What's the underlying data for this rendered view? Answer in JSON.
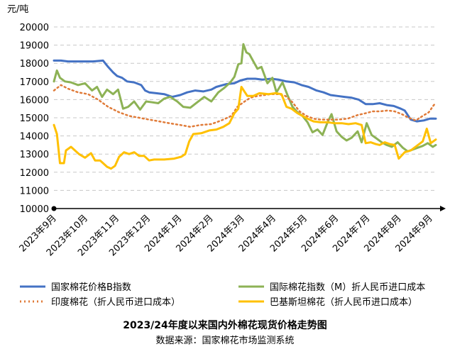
{
  "chart_data": {
    "type": "line",
    "title": "2023/24年度以来国内外棉花现货价格走势图",
    "source": "数据来源：国家棉花市场监测系统",
    "ylabel": "元/吨",
    "ylim": [
      10000,
      20000
    ],
    "ystep": 1000,
    "grid": "horizontal dashed",
    "x_range": [
      "2023-09-01",
      "2024-09-16"
    ],
    "categories": [
      "2023年9月",
      "2023年10月",
      "2023年11月",
      "2023年12月",
      "2024年1月",
      "2024年2月",
      "2024年3月",
      "2024年4月",
      "2024年5月",
      "2024年6月",
      "2024年7月",
      "2024年8月",
      "2024年9月"
    ],
    "legend_position": "bottom",
    "series": [
      {
        "name": "国家棉花价格B指数",
        "color": "#4472c4",
        "style": "solid",
        "points": [
          [
            "2023-09-01",
            18150
          ],
          [
            "2023-09-08",
            18150
          ],
          [
            "2023-09-15",
            18100
          ],
          [
            "2023-09-25",
            18100
          ],
          [
            "2023-10-10",
            18100
          ],
          [
            "2023-10-20",
            18150
          ],
          [
            "2023-10-25",
            17800
          ],
          [
            "2023-10-30",
            17500
          ],
          [
            "2023-11-03",
            17300
          ],
          [
            "2023-11-08",
            17200
          ],
          [
            "2023-11-13",
            17000
          ],
          [
            "2023-11-20",
            16950
          ],
          [
            "2023-11-27",
            16800
          ],
          [
            "2023-12-01",
            16500
          ],
          [
            "2023-12-05",
            16400
          ],
          [
            "2023-12-12",
            16350
          ],
          [
            "2023-12-20",
            16300
          ],
          [
            "2023-12-28",
            16150
          ],
          [
            "2024-01-05",
            16250
          ],
          [
            "2024-01-12",
            16400
          ],
          [
            "2024-01-20",
            16500
          ],
          [
            "2024-01-28",
            16450
          ],
          [
            "2024-02-05",
            16550
          ],
          [
            "2024-02-10",
            16700
          ],
          [
            "2024-02-20",
            16850
          ],
          [
            "2024-02-28",
            16900
          ],
          [
            "2024-03-05",
            17050
          ],
          [
            "2024-03-12",
            17150
          ],
          [
            "2024-03-20",
            17150
          ],
          [
            "2024-03-27",
            17100
          ],
          [
            "2024-04-05",
            17150
          ],
          [
            "2024-04-12",
            17100
          ],
          [
            "2024-04-20",
            17000
          ],
          [
            "2024-04-28",
            16950
          ],
          [
            "2024-05-05",
            16800
          ],
          [
            "2024-05-12",
            16700
          ],
          [
            "2024-05-20",
            16500
          ],
          [
            "2024-05-27",
            16400
          ],
          [
            "2024-06-03",
            16250
          ],
          [
            "2024-06-10",
            16200
          ],
          [
            "2024-06-17",
            16150
          ],
          [
            "2024-06-24",
            16100
          ],
          [
            "2024-07-01",
            16000
          ],
          [
            "2024-07-08",
            15750
          ],
          [
            "2024-07-15",
            15750
          ],
          [
            "2024-07-22",
            15800
          ],
          [
            "2024-07-29",
            15700
          ],
          [
            "2024-08-05",
            15650
          ],
          [
            "2024-08-12",
            15500
          ],
          [
            "2024-08-16",
            15400
          ],
          [
            "2024-08-22",
            14900
          ],
          [
            "2024-08-28",
            14800
          ],
          [
            "2024-09-04",
            14850
          ],
          [
            "2024-09-10",
            14950
          ],
          [
            "2024-09-16",
            14950
          ]
        ]
      },
      {
        "name": "国际棉花指数（M）折人民币进口成本",
        "color": "#8db255",
        "style": "solid",
        "points": [
          [
            "2023-09-01",
            17000
          ],
          [
            "2023-09-04",
            17600
          ],
          [
            "2023-09-07",
            17200
          ],
          [
            "2023-09-12",
            17000
          ],
          [
            "2023-09-18",
            16950
          ],
          [
            "2023-09-25",
            16800
          ],
          [
            "2023-10-02",
            16900
          ],
          [
            "2023-10-09",
            16500
          ],
          [
            "2023-10-14",
            16700
          ],
          [
            "2023-10-19",
            16150
          ],
          [
            "2023-10-24",
            16550
          ],
          [
            "2023-10-30",
            16300
          ],
          [
            "2023-11-04",
            16550
          ],
          [
            "2023-11-09",
            15500
          ],
          [
            "2023-11-14",
            15600
          ],
          [
            "2023-11-20",
            15900
          ],
          [
            "2023-11-26",
            15450
          ],
          [
            "2023-12-02",
            15900
          ],
          [
            "2023-12-08",
            15850
          ],
          [
            "2023-12-14",
            15800
          ],
          [
            "2023-12-20",
            16050
          ],
          [
            "2023-12-26",
            16150
          ],
          [
            "2024-01-02",
            15900
          ],
          [
            "2024-01-08",
            15600
          ],
          [
            "2024-01-15",
            15550
          ],
          [
            "2024-01-22",
            15850
          ],
          [
            "2024-01-29",
            16150
          ],
          [
            "2024-02-05",
            15900
          ],
          [
            "2024-02-12",
            16400
          ],
          [
            "2024-02-18",
            16650
          ],
          [
            "2024-02-24",
            16950
          ],
          [
            "2024-02-28",
            17250
          ],
          [
            "2024-03-03",
            17950
          ],
          [
            "2024-03-06",
            18000
          ],
          [
            "2024-03-08",
            19050
          ],
          [
            "2024-03-11",
            18600
          ],
          [
            "2024-03-14",
            18500
          ],
          [
            "2024-03-18",
            18100
          ],
          [
            "2024-03-22",
            17700
          ],
          [
            "2024-03-26",
            17800
          ],
          [
            "2024-04-01",
            16900
          ],
          [
            "2024-04-06",
            17200
          ],
          [
            "2024-04-10",
            16400
          ],
          [
            "2024-04-16",
            16950
          ],
          [
            "2024-04-21",
            16250
          ],
          [
            "2024-04-26",
            15600
          ],
          [
            "2024-05-01",
            15300
          ],
          [
            "2024-05-06",
            15100
          ],
          [
            "2024-05-11",
            14750
          ],
          [
            "2024-05-16",
            14200
          ],
          [
            "2024-05-21",
            14350
          ],
          [
            "2024-05-26",
            14050
          ],
          [
            "2024-05-31",
            14750
          ],
          [
            "2024-06-04",
            15200
          ],
          [
            "2024-06-09",
            14250
          ],
          [
            "2024-06-14",
            13950
          ],
          [
            "2024-06-19",
            13750
          ],
          [
            "2024-06-24",
            13900
          ],
          [
            "2024-06-30",
            14250
          ],
          [
            "2024-07-04",
            13650
          ],
          [
            "2024-07-09",
            14700
          ],
          [
            "2024-07-14",
            14050
          ],
          [
            "2024-07-19",
            13850
          ],
          [
            "2024-07-24",
            13650
          ],
          [
            "2024-07-29",
            13500
          ],
          [
            "2024-08-03",
            13400
          ],
          [
            "2024-08-09",
            13650
          ],
          [
            "2024-08-14",
            13350
          ],
          [
            "2024-08-19",
            13150
          ],
          [
            "2024-08-24",
            13250
          ],
          [
            "2024-08-29",
            13350
          ],
          [
            "2024-09-03",
            13450
          ],
          [
            "2024-09-08",
            13600
          ],
          [
            "2024-09-13",
            13400
          ],
          [
            "2024-09-16",
            13500
          ]
        ]
      },
      {
        "name": "印度棉花（折人民币进口成本）",
        "color": "#e07b39",
        "style": "dotted",
        "points": [
          [
            "2023-09-01",
            16500
          ],
          [
            "2023-09-08",
            16800
          ],
          [
            "2023-09-15",
            16600
          ],
          [
            "2023-09-25",
            16400
          ],
          [
            "2023-10-05",
            16300
          ],
          [
            "2023-10-15",
            16000
          ],
          [
            "2023-10-25",
            15600
          ],
          [
            "2023-11-05",
            15300
          ],
          [
            "2023-11-15",
            15100
          ],
          [
            "2023-11-25",
            15000
          ],
          [
            "2023-12-05",
            14900
          ],
          [
            "2023-12-15",
            14800
          ],
          [
            "2023-12-25",
            14700
          ],
          [
            "2024-01-05",
            14600
          ],
          [
            "2024-01-15",
            14500
          ],
          [
            "2024-01-25",
            14600
          ],
          [
            "2024-02-05",
            14650
          ],
          [
            "2024-02-15",
            14850
          ],
          [
            "2024-02-25",
            15100
          ],
          [
            "2024-03-02",
            15600
          ],
          [
            "2024-03-08",
            15850
          ],
          [
            "2024-03-15",
            16100
          ],
          [
            "2024-03-22",
            16200
          ],
          [
            "2024-03-29",
            16250
          ],
          [
            "2024-04-05",
            16300
          ],
          [
            "2024-04-12",
            16300
          ],
          [
            "2024-04-19",
            16200
          ],
          [
            "2024-04-26",
            15850
          ],
          [
            "2024-05-03",
            15350
          ],
          [
            "2024-05-10",
            15100
          ],
          [
            "2024-05-17",
            14950
          ],
          [
            "2024-05-24",
            14900
          ],
          [
            "2024-06-01",
            14900
          ],
          [
            "2024-06-10",
            14900
          ],
          [
            "2024-06-20",
            14950
          ],
          [
            "2024-06-30",
            15150
          ],
          [
            "2024-07-08",
            15250
          ],
          [
            "2024-07-15",
            15350
          ],
          [
            "2024-07-22",
            15350
          ],
          [
            "2024-07-30",
            15400
          ],
          [
            "2024-08-06",
            15350
          ],
          [
            "2024-08-13",
            15200
          ],
          [
            "2024-08-20",
            15000
          ],
          [
            "2024-08-27",
            14850
          ],
          [
            "2024-09-03",
            15100
          ],
          [
            "2024-09-09",
            15300
          ],
          [
            "2024-09-14",
            15700
          ],
          [
            "2024-09-16",
            15800
          ]
        ]
      },
      {
        "name": "巴基斯坦棉花（折人民币进口成本）",
        "color": "#ffc000",
        "style": "solid",
        "points": [
          [
            "2023-09-01",
            14600
          ],
          [
            "2023-09-04",
            14100
          ],
          [
            "2023-09-07",
            12500
          ],
          [
            "2023-09-11",
            12500
          ],
          [
            "2023-09-13",
            13200
          ],
          [
            "2023-09-18",
            13400
          ],
          [
            "2023-09-22",
            13200
          ],
          [
            "2023-09-26",
            13000
          ],
          [
            "2023-10-02",
            12800
          ],
          [
            "2023-10-08",
            13050
          ],
          [
            "2023-10-12",
            12650
          ],
          [
            "2023-10-17",
            12650
          ],
          [
            "2023-10-20",
            12500
          ],
          [
            "2023-10-24",
            12300
          ],
          [
            "2023-10-28",
            12200
          ],
          [
            "2023-11-01",
            12350
          ],
          [
            "2023-11-05",
            12850
          ],
          [
            "2023-11-10",
            13100
          ],
          [
            "2023-11-15",
            13000
          ],
          [
            "2023-11-20",
            13100
          ],
          [
            "2023-11-25",
            12900
          ],
          [
            "2023-11-30",
            12900
          ],
          [
            "2023-12-05",
            12650
          ],
          [
            "2023-12-10",
            12700
          ],
          [
            "2023-12-20",
            12700
          ],
          [
            "2023-12-30",
            12750
          ],
          [
            "2024-01-06",
            12850
          ],
          [
            "2024-01-10",
            13000
          ],
          [
            "2024-01-14",
            13700
          ],
          [
            "2024-01-18",
            14100
          ],
          [
            "2024-01-26",
            14150
          ],
          [
            "2024-02-03",
            14300
          ],
          [
            "2024-02-10",
            14350
          ],
          [
            "2024-02-17",
            14500
          ],
          [
            "2024-02-23",
            14700
          ],
          [
            "2024-02-28",
            15250
          ],
          [
            "2024-03-03",
            15500
          ],
          [
            "2024-03-06",
            16700
          ],
          [
            "2024-03-12",
            16200
          ],
          [
            "2024-03-18",
            16200
          ],
          [
            "2024-03-24",
            16350
          ],
          [
            "2024-04-02",
            16300
          ],
          [
            "2024-04-09",
            16350
          ],
          [
            "2024-04-15",
            16300
          ],
          [
            "2024-04-20",
            15600
          ],
          [
            "2024-04-25",
            15500
          ],
          [
            "2024-05-01",
            15250
          ],
          [
            "2024-05-06",
            15100
          ],
          [
            "2024-05-11",
            14950
          ],
          [
            "2024-05-17",
            14800
          ],
          [
            "2024-05-24",
            14750
          ],
          [
            "2024-05-31",
            14750
          ],
          [
            "2024-06-07",
            14700
          ],
          [
            "2024-06-14",
            14700
          ],
          [
            "2024-06-21",
            14650
          ],
          [
            "2024-06-28",
            14700
          ],
          [
            "2024-07-04",
            14600
          ],
          [
            "2024-07-08",
            13600
          ],
          [
            "2024-07-13",
            13650
          ],
          [
            "2024-07-18",
            13550
          ],
          [
            "2024-07-22",
            13500
          ],
          [
            "2024-07-27",
            13650
          ],
          [
            "2024-08-01",
            13550
          ],
          [
            "2024-08-06",
            13500
          ],
          [
            "2024-08-10",
            12750
          ],
          [
            "2024-08-16",
            13100
          ],
          [
            "2024-08-22",
            13200
          ],
          [
            "2024-08-28",
            13450
          ],
          [
            "2024-09-03",
            13700
          ],
          [
            "2024-09-07",
            14400
          ],
          [
            "2024-09-11",
            13600
          ],
          [
            "2024-09-16",
            13800
          ]
        ]
      }
    ]
  }
}
